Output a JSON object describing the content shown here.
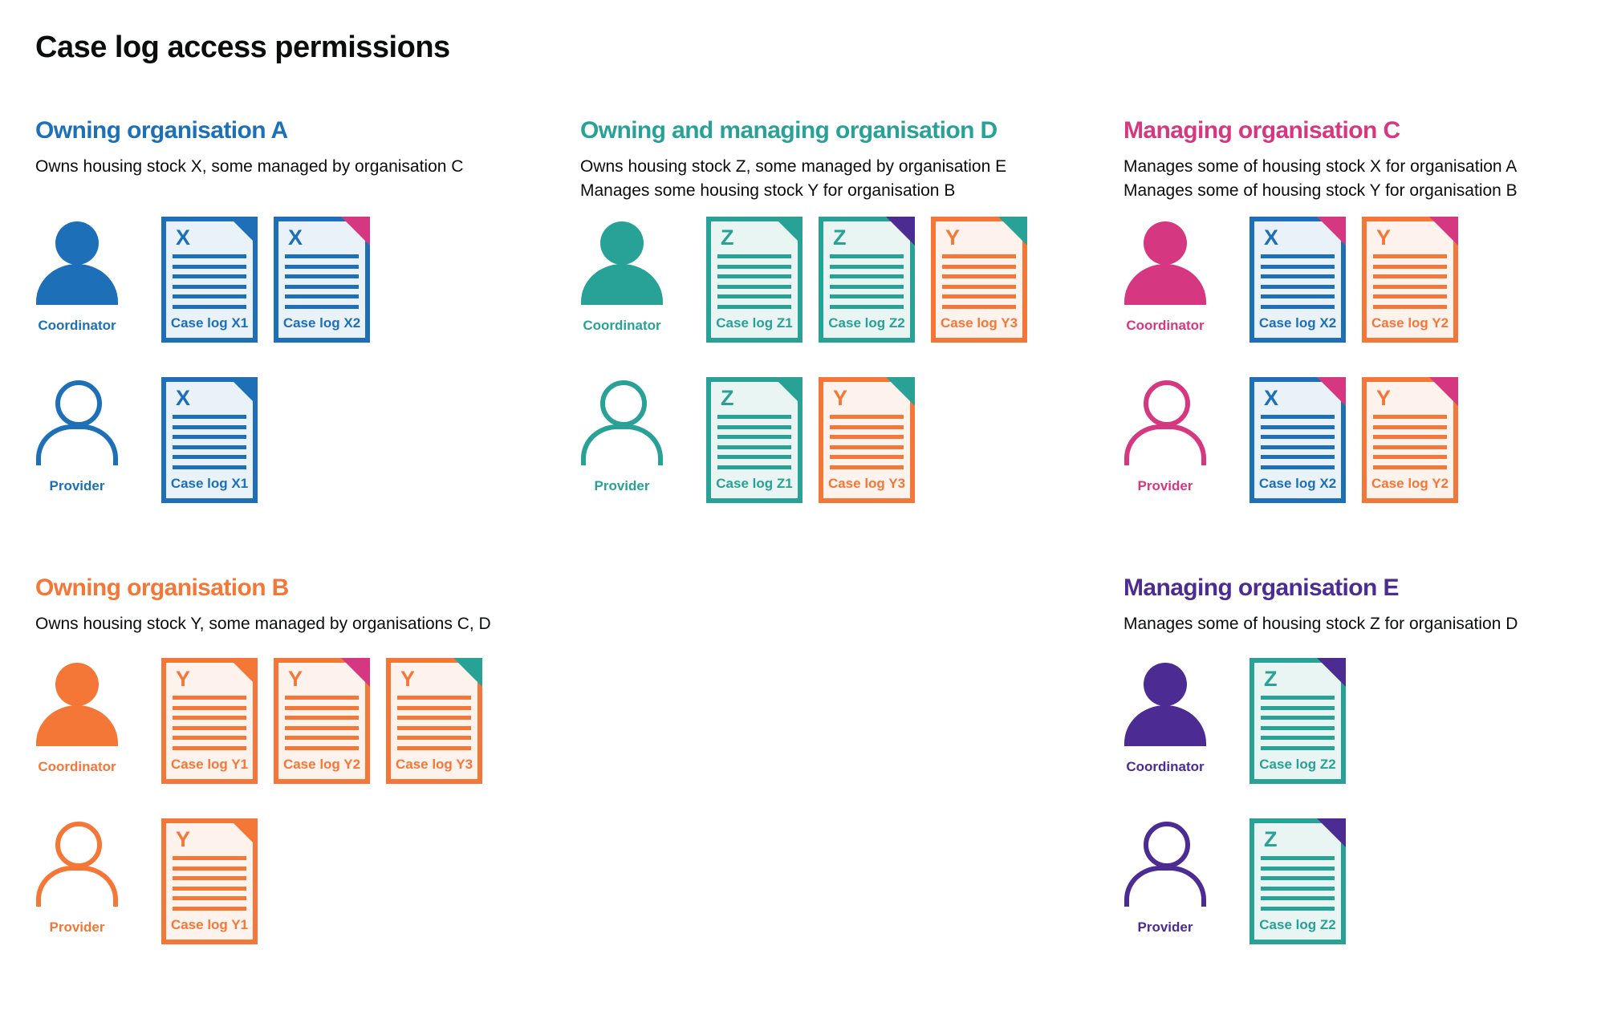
{
  "title": "Case log access permissions",
  "colors": {
    "blue": "#1d70b8",
    "teal": "#28a197",
    "orange": "#f47738",
    "pink": "#d53880",
    "purple": "#4c2c92",
    "text": "#0b0c0c",
    "doc_fill_blue": "#e9f1f9",
    "doc_fill_teal": "#e9f5f3",
    "doc_fill_orange": "#fdf2ec"
  },
  "sections": [
    {
      "heading": "Owning organisation A",
      "color": "blue",
      "description_lines": [
        "Owns housing stock X, some managed by organisation C"
      ],
      "rows": [
        {
          "role": "Coordinator",
          "docs": [
            {
              "letter": "X",
              "label": "Case log X1",
              "stock": "blue",
              "fold": "blue"
            },
            {
              "letter": "X",
              "label": "Case log X2",
              "stock": "blue",
              "fold": "pink"
            }
          ]
        },
        {
          "role": "Provider",
          "docs": [
            {
              "letter": "X",
              "label": "Case log X1",
              "stock": "blue",
              "fold": "blue"
            }
          ]
        }
      ]
    },
    {
      "heading": "Owning and managing organisation D",
      "color": "teal",
      "description_lines": [
        "Owns housing stock Z, some managed by organisation E",
        "Manages some housing stock Y for organisation B"
      ],
      "rows": [
        {
          "role": "Coordinator",
          "docs": [
            {
              "letter": "Z",
              "label": "Case log Z1",
              "stock": "teal",
              "fold": "teal"
            },
            {
              "letter": "Z",
              "label": "Case log Z2",
              "stock": "teal",
              "fold": "purple"
            },
            {
              "letter": "Y",
              "label": "Case log Y3",
              "stock": "orange",
              "fold": "teal"
            }
          ]
        },
        {
          "role": "Provider",
          "docs": [
            {
              "letter": "Z",
              "label": "Case log Z1",
              "stock": "teal",
              "fold": "teal"
            },
            {
              "letter": "Y",
              "label": "Case log Y3",
              "stock": "orange",
              "fold": "teal"
            }
          ]
        }
      ]
    },
    {
      "heading": "Managing organisation C",
      "color": "pink",
      "description_lines": [
        "Manages some of housing stock X for organisation A",
        "Manages some of housing stock Y for organisation B"
      ],
      "rows": [
        {
          "role": "Coordinator",
          "docs": [
            {
              "letter": "X",
              "label": "Case log X2",
              "stock": "blue",
              "fold": "pink"
            },
            {
              "letter": "Y",
              "label": "Case log Y2",
              "stock": "orange",
              "fold": "pink"
            }
          ]
        },
        {
          "role": "Provider",
          "docs": [
            {
              "letter": "X",
              "label": "Case log X2",
              "stock": "blue",
              "fold": "pink"
            },
            {
              "letter": "Y",
              "label": "Case log Y2",
              "stock": "orange",
              "fold": "pink"
            }
          ]
        }
      ]
    },
    {
      "heading": "Owning organisation B",
      "color": "orange",
      "description_lines": [
        "Owns housing stock Y, some managed by organisations C, D"
      ],
      "rows": [
        {
          "role": "Coordinator",
          "docs": [
            {
              "letter": "Y",
              "label": "Case log Y1",
              "stock": "orange",
              "fold": "orange"
            },
            {
              "letter": "Y",
              "label": "Case log Y2",
              "stock": "orange",
              "fold": "pink"
            },
            {
              "letter": "Y",
              "label": "Case log Y3",
              "stock": "orange",
              "fold": "teal"
            }
          ]
        },
        {
          "role": "Provider",
          "docs": [
            {
              "letter": "Y",
              "label": "Case log Y1",
              "stock": "orange",
              "fold": "orange"
            }
          ]
        }
      ]
    },
    {
      "heading": "Managing organisation E",
      "color": "purple",
      "description_lines": [
        "Manages some of housing stock Z for organisation D"
      ],
      "rows": [
        {
          "role": "Coordinator",
          "docs": [
            {
              "letter": "Z",
              "label": "Case log Z2",
              "stock": "teal",
              "fold": "purple"
            }
          ]
        },
        {
          "role": "Provider",
          "docs": [
            {
              "letter": "Z",
              "label": "Case log Z2",
              "stock": "teal",
              "fold": "purple"
            }
          ]
        }
      ]
    }
  ]
}
